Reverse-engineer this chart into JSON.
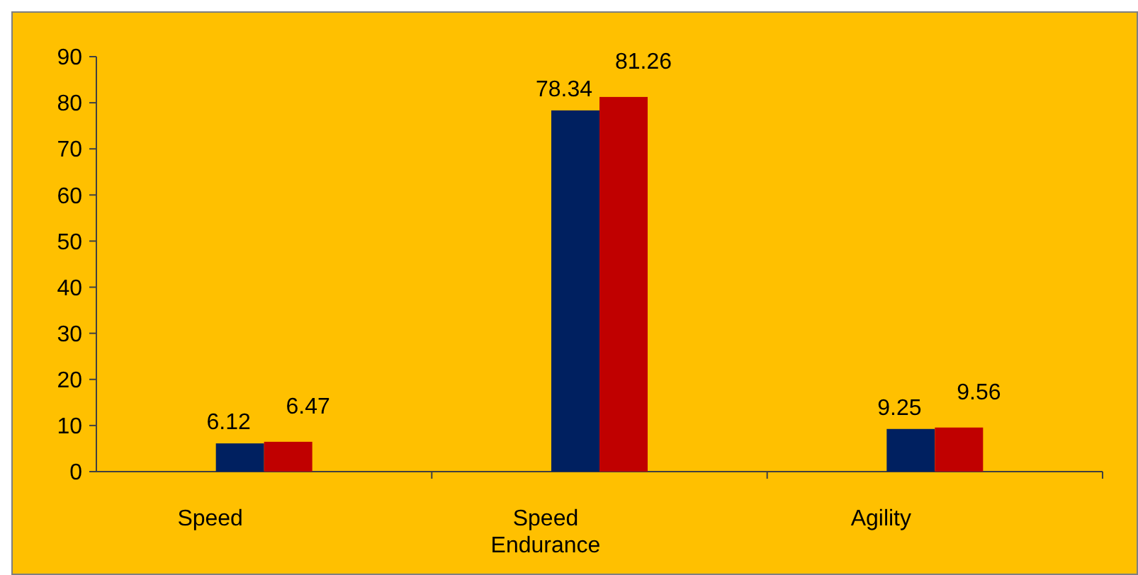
{
  "chart_data": {
    "type": "bar",
    "categories": [
      "Speed",
      "Speed Endurance",
      "Agility"
    ],
    "series": [
      {
        "color": "#002060",
        "values": [
          6.12,
          78.34,
          9.25
        ]
      },
      {
        "color": "#c00000",
        "values": [
          6.47,
          81.26,
          9.56
        ]
      }
    ],
    "ylim": [
      0,
      90
    ],
    "yticks": [
      0,
      10,
      20,
      30,
      40,
      50,
      60,
      70,
      80,
      90
    ],
    "grid": false,
    "data_labels": true
  }
}
